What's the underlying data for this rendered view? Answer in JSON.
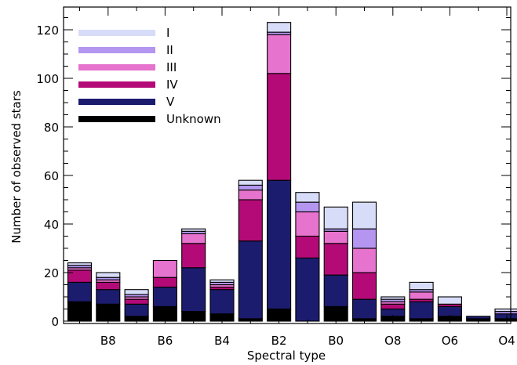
{
  "chart_data": {
    "type": "bar",
    "stacked": true,
    "xlabel": "Spectral type",
    "ylabel": "Number of observed stars",
    "ylim": [
      0,
      130
    ],
    "yticks": [
      0,
      20,
      40,
      60,
      80,
      100,
      120
    ],
    "xtick_labels": [
      {
        "label": "B8",
        "bar_index": 1
      },
      {
        "label": "B6",
        "bar_index": 3
      },
      {
        "label": "B4",
        "bar_index": 5
      },
      {
        "label": "B2",
        "bar_index": 7
      },
      {
        "label": "B0",
        "bar_index": 9
      },
      {
        "label": "O8",
        "bar_index": 11
      },
      {
        "label": "O6",
        "bar_index": 13
      },
      {
        "label": "O4",
        "bar_index": 15
      }
    ],
    "bar_count": 16,
    "legend_position": "top-left",
    "series": [
      {
        "name": "Unknown",
        "color": "#000000",
        "values": [
          8,
          7,
          2,
          6,
          4,
          3,
          1,
          5,
          0,
          6,
          1,
          2,
          1,
          2,
          1,
          1
        ]
      },
      {
        "name": "V",
        "color": "#1c1c6e",
        "values": [
          8,
          6,
          5,
          8,
          18,
          10,
          32,
          53,
          26,
          13,
          8,
          3,
          7,
          4,
          1,
          2
        ]
      },
      {
        "name": "IV",
        "color": "#b40a78",
        "values": [
          5,
          3,
          2,
          4,
          10,
          1,
          17,
          44,
          9,
          13,
          11,
          2,
          1,
          1,
          0,
          0
        ]
      },
      {
        "name": "III",
        "color": "#e673cd",
        "values": [
          1,
          1,
          1,
          7,
          4,
          1,
          4,
          16,
          10,
          5,
          10,
          1,
          3,
          0,
          0,
          0
        ]
      },
      {
        "name": "II",
        "color": "#b496f0",
        "values": [
          1,
          1,
          1,
          0,
          1,
          1,
          2,
          1,
          4,
          1,
          8,
          1,
          1,
          0,
          0,
          1
        ]
      },
      {
        "name": "I",
        "color": "#d7dcf8",
        "values": [
          1,
          2,
          2,
          0,
          1,
          1,
          2,
          4,
          4,
          9,
          11,
          1,
          3,
          3,
          0,
          1
        ]
      }
    ]
  }
}
